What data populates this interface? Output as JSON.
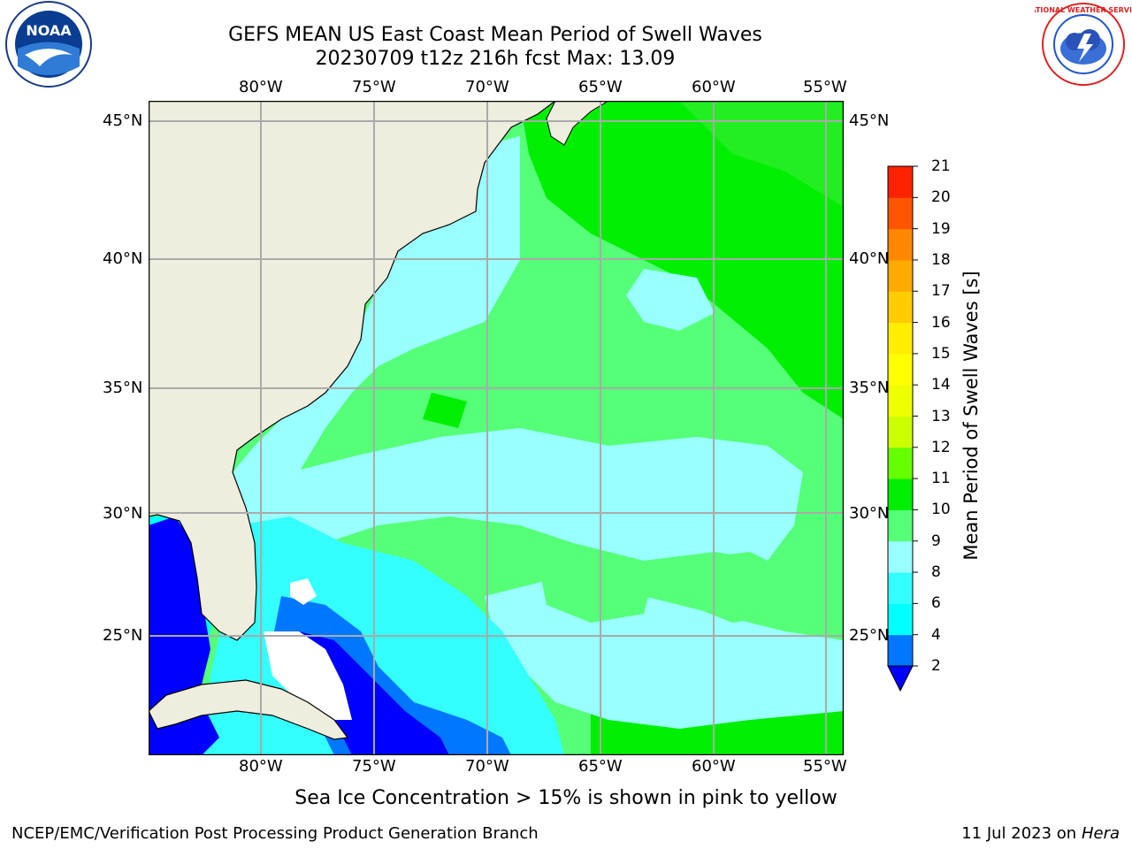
{
  "header": {
    "title_line1": "GEFS MEAN US East Coast Mean Period of Swell Waves",
    "title_line2": "20230709 t12z 216h fcst   Max: 13.09"
  },
  "map": {
    "lon_labels_top": [
      "80°W",
      "75°W",
      "70°W",
      "65°W",
      "60°W",
      "55°W"
    ],
    "lon_labels_bottom": [
      "80°W",
      "75°W",
      "70°W",
      "65°W",
      "60°W",
      "55°W"
    ],
    "lat_labels_left": [
      "45°N",
      "40°N",
      "35°N",
      "30°N",
      "25°N"
    ],
    "lat_labels_right": [
      "45°N",
      "40°N",
      "35°N",
      "30°N",
      "25°N"
    ],
    "land_color": "#eeedde",
    "ocean_colors": {
      "2_4": "#0000ff",
      "4_6": "#00ffff",
      "6_8": "#33ffff",
      "8_9": "#99ffff",
      "9_10": "#55ff77",
      "10_11": "#00ee00",
      "11_12": "#66ff33"
    }
  },
  "colorbar": {
    "label": "Mean Period of Swell Waves [s]",
    "ticks": [
      "2",
      "4",
      "6",
      "8",
      "9",
      "10",
      "11",
      "12",
      "13",
      "14",
      "15",
      "16",
      "17",
      "18",
      "19",
      "20",
      "21"
    ],
    "colors": [
      "#0077ff",
      "#00ffff",
      "#33ffff",
      "#99ffff",
      "#55ff77",
      "#00ee00",
      "#66ff00",
      "#ccff00",
      "#eeff00",
      "#ffff00",
      "#ffee00",
      "#ffcc00",
      "#ffaa00",
      "#ff8800",
      "#ff5500",
      "#ff2200"
    ],
    "under_color": "#0000ff"
  },
  "notes": {
    "sea_ice": "Sea Ice Concentration > 15% is shown in pink to yellow"
  },
  "footer": {
    "left": "NCEP/EMC/Verification Post Processing Product Generation Branch",
    "date": "11 Jul 2023 on ",
    "machine": "Hera"
  },
  "logos": {
    "left": "noaa-logo",
    "right": "nws-logo",
    "left_text": "NOAA",
    "right_text": "NATIONAL WEATHER SERVICE"
  }
}
